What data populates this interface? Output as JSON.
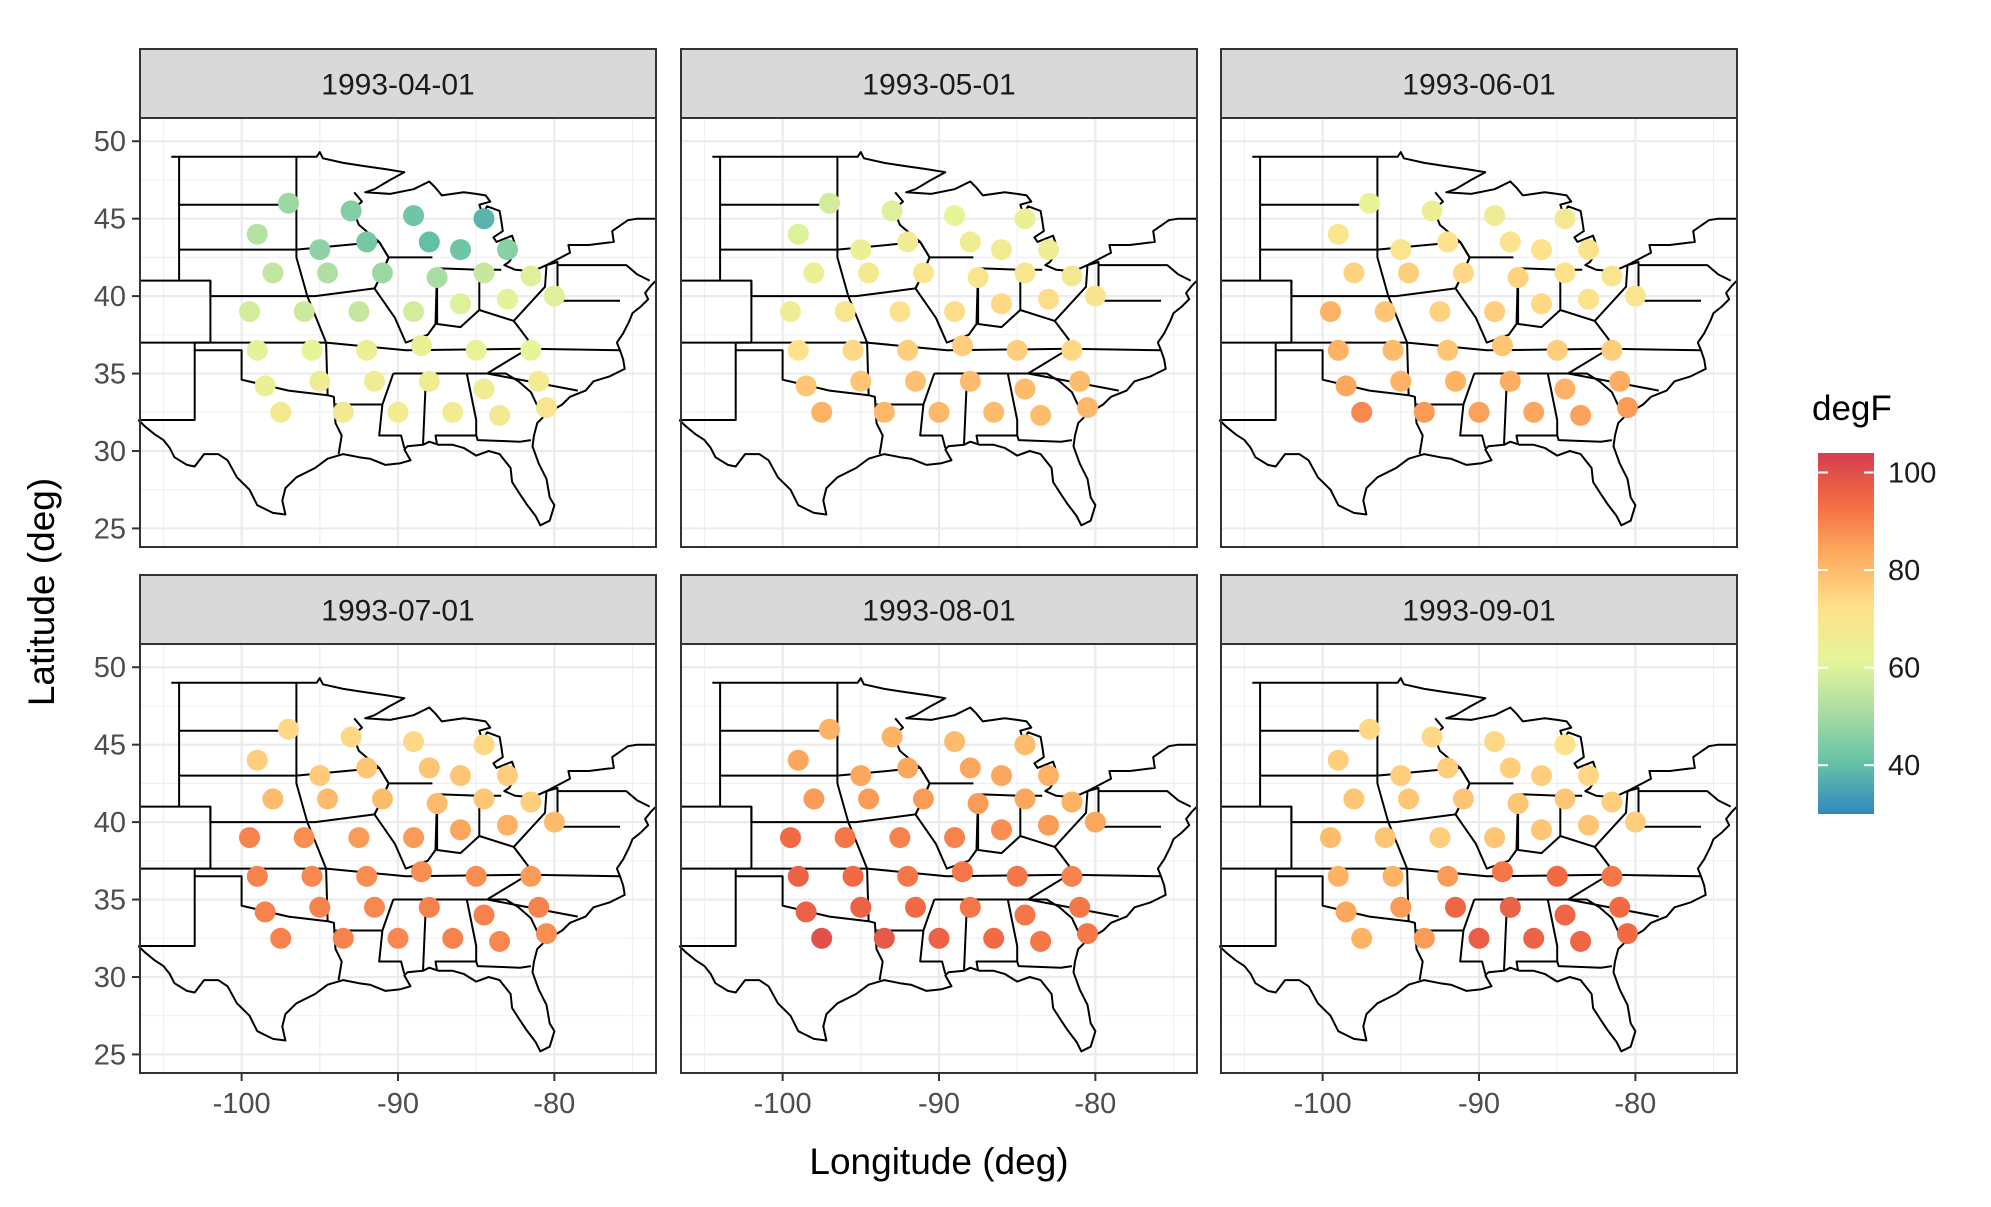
{
  "chart_data": {
    "type": "scatter",
    "title": "",
    "xlabel": "Longitude (deg)",
    "ylabel": "Latitude (deg)",
    "xlim": [
      -106.5,
      -73.5
    ],
    "ylim": [
      23.8,
      51.5
    ],
    "x_ticks": [
      -100,
      -90,
      -80
    ],
    "x_tick_labels": [
      "-100",
      "-90",
      "-80"
    ],
    "y_ticks": [
      25,
      30,
      35,
      40,
      45,
      50
    ],
    "y_tick_labels": [
      "25",
      "30",
      "35",
      "40",
      "45",
      "50"
    ],
    "grid": true,
    "legend": {
      "title": "degF",
      "position": "right",
      "type": "colorbar",
      "range": [
        30,
        104
      ],
      "ticks": [
        40,
        60,
        80,
        100
      ],
      "tick_labels": [
        "40",
        "60",
        "80",
        "100"
      ],
      "palette": [
        "#3288bd",
        "#66c2a5",
        "#abdda4",
        "#e6f598",
        "#fee08b",
        "#fdae61",
        "#f46d43",
        "#d53e4f"
      ]
    },
    "stations": [
      [
        -97,
        46
      ],
      [
        -93,
        45.5
      ],
      [
        -89,
        45.2
      ],
      [
        -84.5,
        45
      ],
      [
        -99,
        44
      ],
      [
        -95,
        43
      ],
      [
        -92,
        43.5
      ],
      [
        -88,
        43.5
      ],
      [
        -86,
        43
      ],
      [
        -83,
        43
      ],
      [
        -98,
        41.5
      ],
      [
        -94.5,
        41.5
      ],
      [
        -91,
        41.5
      ],
      [
        -87.5,
        41.2
      ],
      [
        -84.5,
        41.5
      ],
      [
        -81.5,
        41.3
      ],
      [
        -99.5,
        39
      ],
      [
        -96,
        39
      ],
      [
        -92.5,
        39
      ],
      [
        -89,
        39
      ],
      [
        -86,
        39.5
      ],
      [
        -83,
        39.8
      ],
      [
        -80,
        40
      ],
      [
        -99,
        36.5
      ],
      [
        -95.5,
        36.5
      ],
      [
        -92,
        36.5
      ],
      [
        -88.5,
        36.8
      ],
      [
        -85,
        36.5
      ],
      [
        -81.5,
        36.5
      ],
      [
        -98.5,
        34.2
      ],
      [
        -95,
        34.5
      ],
      [
        -91.5,
        34.5
      ],
      [
        -88,
        34.5
      ],
      [
        -84.5,
        34
      ],
      [
        -81,
        34.5
      ],
      [
        -97.5,
        32.5
      ],
      [
        -93.5,
        32.5
      ],
      [
        -90,
        32.5
      ],
      [
        -86.5,
        32.5
      ],
      [
        -83.5,
        32.3
      ],
      [
        -80.5,
        32.8
      ]
    ],
    "panels": [
      {
        "date": "1993-04-01",
        "temps": [
          49,
          45,
          42,
          38,
          53,
          47,
          43,
          40,
          42,
          46,
          55,
          52,
          49,
          51,
          56,
          60,
          58,
          57,
          56,
          58,
          60,
          61,
          60,
          61,
          62,
          64,
          64,
          63,
          62,
          64,
          65,
          66,
          66,
          66,
          67,
          68,
          68,
          67,
          67,
          68,
          70
        ]
      },
      {
        "date": "1993-05-01",
        "temps": [
          58,
          60,
          62,
          64,
          60,
          64,
          66,
          66,
          67,
          66,
          64,
          68,
          70,
          70,
          69,
          68,
          66,
          70,
          72,
          73,
          74,
          73,
          71,
          72,
          74,
          76,
          76,
          76,
          74,
          78,
          78,
          79,
          80,
          80,
          80,
          82,
          81,
          81,
          80,
          80,
          81
        ]
      },
      {
        "date": "1993-06-01",
        "temps": [
          63,
          65,
          66,
          68,
          69,
          70,
          72,
          71,
          72,
          71,
          75,
          76,
          74,
          75,
          72,
          70,
          82,
          78,
          75,
          76,
          74,
          72,
          70,
          82,
          80,
          78,
          78,
          76,
          76,
          84,
          82,
          82,
          83,
          82,
          83,
          89,
          86,
          85,
          84,
          85,
          86
        ]
      },
      {
        "date": "1993-07-01",
        "temps": [
          74,
          74,
          74,
          74,
          76,
          77,
          78,
          78,
          78,
          76,
          80,
          80,
          80,
          80,
          78,
          76,
          90,
          88,
          86,
          86,
          84,
          82,
          80,
          90,
          89,
          88,
          88,
          88,
          86,
          90,
          90,
          89,
          90,
          90,
          90,
          90,
          90,
          89,
          90,
          89,
          88
        ]
      },
      {
        "date": "1993-08-01",
        "temps": [
          82,
          82,
          80,
          80,
          84,
          84,
          84,
          84,
          84,
          82,
          86,
          86,
          86,
          86,
          84,
          82,
          94,
          92,
          90,
          90,
          88,
          86,
          84,
          96,
          94,
          92,
          92,
          92,
          90,
          96,
          96,
          94,
          92,
          92,
          92,
          100,
          98,
          96,
          94,
          92,
          92
        ]
      },
      {
        "date": "1993-09-01",
        "temps": [
          74,
          74,
          74,
          72,
          76,
          76,
          76,
          76,
          76,
          74,
          78,
          78,
          78,
          78,
          78,
          76,
          80,
          78,
          76,
          78,
          78,
          78,
          76,
          82,
          82,
          86,
          92,
          94,
          92,
          84,
          86,
          95,
          96,
          95,
          94,
          82,
          86,
          97,
          96,
          95,
          94
        ]
      }
    ]
  }
}
